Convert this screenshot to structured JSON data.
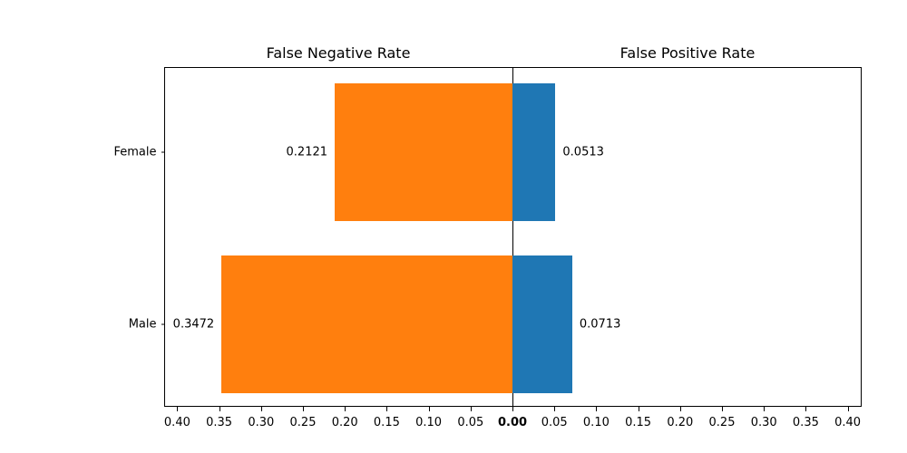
{
  "chart_data": {
    "type": "bar",
    "variant": "diverging-horizontal",
    "categories": [
      "Female",
      "Male"
    ],
    "series": [
      {
        "name": "False Negative Rate",
        "side": "left",
        "color": "#ff7f0e",
        "values": [
          0.2121,
          0.3472
        ],
        "value_labels": [
          "0.2121",
          "0.3472"
        ]
      },
      {
        "name": "False Positive Rate",
        "side": "right",
        "color": "#1f77b4",
        "values": [
          0.0513,
          0.0713
        ],
        "value_labels": [
          "0.0513",
          "0.0713"
        ]
      }
    ],
    "subplot_titles": {
      "left": "False Negative Rate",
      "right": "False Positive Rate"
    },
    "x_axis": {
      "tick_step": 0.05,
      "tick_values": [
        0.4,
        0.35,
        0.3,
        0.25,
        0.2,
        0.15,
        0.1,
        0.05
      ],
      "tick_labels": [
        "0.40",
        "0.35",
        "0.30",
        "0.25",
        "0.20",
        "0.15",
        "0.10",
        "0.05"
      ],
      "center_tick_label": "0.00",
      "xlim_each_side": [
        0,
        0.4157
      ]
    },
    "grid": false,
    "legend_position": "none",
    "axis_color": "#000000",
    "text_color": "#000000",
    "background_color": "#ffffff"
  }
}
